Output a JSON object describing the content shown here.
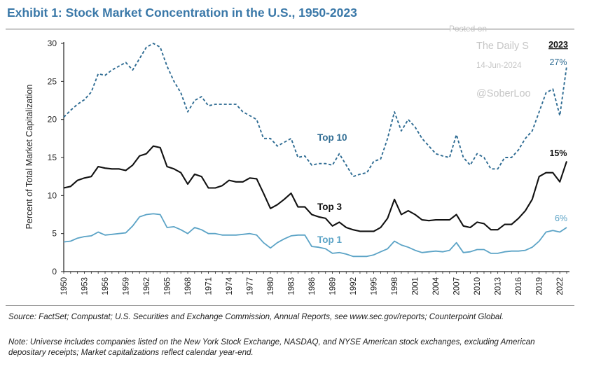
{
  "header": {
    "title": "Exhibit 1: Stock Market Concentration in the U.S., 1950-2023"
  },
  "watermark": {
    "posted_on": "Posted on",
    "site": "The Daily S",
    "date": "14-Jun-2024",
    "handle": "@SoberLoo"
  },
  "colors": {
    "title": "#3a78a8",
    "top10": "#2f6c93",
    "top3": "#111111",
    "top1": "#5ba3c6",
    "axis": "#222222"
  },
  "chart_data": {
    "type": "line",
    "title": "Exhibit 1: Stock Market Concentration in the U.S., 1950-2023",
    "xlabel": "",
    "ylabel": "Percent of Total Market Capitalization",
    "ylim": [
      0,
      30
    ],
    "xlim": [
      1950,
      2023
    ],
    "yticks": [
      "0",
      "5",
      "10",
      "15",
      "20",
      "25",
      "30"
    ],
    "xticks": [
      "1950",
      "1953",
      "1956",
      "1959",
      "1962",
      "1965",
      "1968",
      "1971",
      "1974",
      "1977",
      "1980",
      "1983",
      "1986",
      "1989",
      "1992",
      "1995",
      "1998",
      "2001",
      "2004",
      "2007",
      "2010",
      "2013",
      "2016",
      "2019",
      "2022"
    ],
    "grid": false,
    "x": [
      1950,
      1951,
      1952,
      1953,
      1954,
      1955,
      1956,
      1957,
      1958,
      1959,
      1960,
      1961,
      1962,
      1963,
      1964,
      1965,
      1966,
      1967,
      1968,
      1969,
      1970,
      1971,
      1972,
      1973,
      1974,
      1975,
      1976,
      1977,
      1978,
      1979,
      1980,
      1981,
      1982,
      1983,
      1984,
      1985,
      1986,
      1987,
      1988,
      1989,
      1990,
      1991,
      1992,
      1993,
      1994,
      1995,
      1996,
      1997,
      1998,
      1999,
      2000,
      2001,
      2002,
      2003,
      2004,
      2005,
      2006,
      2007,
      2008,
      2009,
      2010,
      2011,
      2012,
      2013,
      2014,
      2015,
      2016,
      2017,
      2018,
      2019,
      2020,
      2021,
      2022,
      2023
    ],
    "series": [
      {
        "name": "Top 10",
        "style": "dashed",
        "values": [
          20.3,
          21.2,
          22.0,
          22.6,
          23.6,
          26.0,
          25.8,
          26.5,
          27.0,
          27.5,
          26.5,
          28.0,
          29.5,
          30.0,
          29.5,
          27.0,
          25.0,
          23.5,
          21.0,
          22.5,
          23.0,
          21.8,
          22.0,
          22.0,
          22.0,
          22.0,
          21.0,
          20.5,
          20.0,
          17.5,
          17.5,
          16.5,
          17.0,
          17.5,
          15.0,
          15.2,
          14.0,
          14.2,
          14.2,
          14.0,
          15.5,
          14.0,
          12.5,
          12.8,
          13.0,
          14.5,
          14.8,
          17.5,
          21.0,
          18.5,
          20.0,
          19.0,
          17.5,
          16.5,
          15.5,
          15.2,
          15.0,
          18.0,
          15.0,
          14.0,
          15.5,
          15.0,
          13.5,
          13.5,
          15.0,
          15.0,
          16.0,
          17.5,
          18.5,
          21.0,
          23.5,
          24.0,
          20.5,
          27.0
        ]
      },
      {
        "name": "Top 3",
        "style": "solid",
        "values": [
          11.0,
          11.2,
          12.0,
          12.3,
          12.5,
          13.8,
          13.6,
          13.5,
          13.5,
          13.3,
          14.0,
          15.2,
          15.5,
          16.5,
          16.3,
          13.8,
          13.5,
          13.0,
          11.5,
          12.8,
          12.5,
          11.0,
          11.0,
          11.3,
          12.0,
          11.8,
          11.8,
          12.3,
          12.2,
          10.3,
          8.3,
          8.8,
          9.5,
          10.3,
          8.5,
          8.5,
          7.5,
          7.2,
          7.0,
          6.0,
          6.5,
          5.8,
          5.5,
          5.3,
          5.3,
          5.3,
          5.8,
          7.0,
          9.5,
          7.5,
          8.0,
          7.5,
          6.8,
          6.7,
          6.8,
          6.8,
          6.8,
          7.5,
          6.0,
          5.8,
          6.5,
          6.3,
          5.5,
          5.5,
          6.2,
          6.2,
          7.0,
          8.0,
          9.5,
          12.5,
          13.0,
          13.0,
          11.8,
          14.5
        ]
      },
      {
        "name": "Top 1",
        "style": "solid",
        "values": [
          3.9,
          4.0,
          4.4,
          4.6,
          4.7,
          5.2,
          4.8,
          4.9,
          5.0,
          5.1,
          6.0,
          7.2,
          7.5,
          7.6,
          7.5,
          5.8,
          5.9,
          5.5,
          5.0,
          5.8,
          5.5,
          5.0,
          5.0,
          4.8,
          4.8,
          4.8,
          4.9,
          5.0,
          4.8,
          3.8,
          3.1,
          3.8,
          4.3,
          4.7,
          4.8,
          4.8,
          3.3,
          3.2,
          3.0,
          2.4,
          2.5,
          2.3,
          2.0,
          2.0,
          2.0,
          2.2,
          2.6,
          3.0,
          4.0,
          3.5,
          3.2,
          2.8,
          2.5,
          2.6,
          2.7,
          2.6,
          2.8,
          3.8,
          2.5,
          2.6,
          2.9,
          2.9,
          2.4,
          2.4,
          2.6,
          2.7,
          2.7,
          2.8,
          3.2,
          4.0,
          5.2,
          5.4,
          5.2,
          5.8
        ]
      }
    ],
    "annotations": {
      "top10_label": "Top 10",
      "top3_label": "Top 3",
      "top1_label": "Top 1",
      "year_label": "2023",
      "top10_end": "27%",
      "top3_end": "15%",
      "top1_end": "6%"
    }
  },
  "footer": {
    "source": "Source: FactSet; Compustat; U.S. Securities and Exchange Commission, Annual Reports, see www.sec.gov/reports; Counterpoint Global.",
    "note": "Note: Universe includes companies listed on the New York Stock Exchange, NASDAQ, and NYSE American stock exchanges, excluding American depositary receipts; Market capitalizations reflect calendar year-end."
  }
}
